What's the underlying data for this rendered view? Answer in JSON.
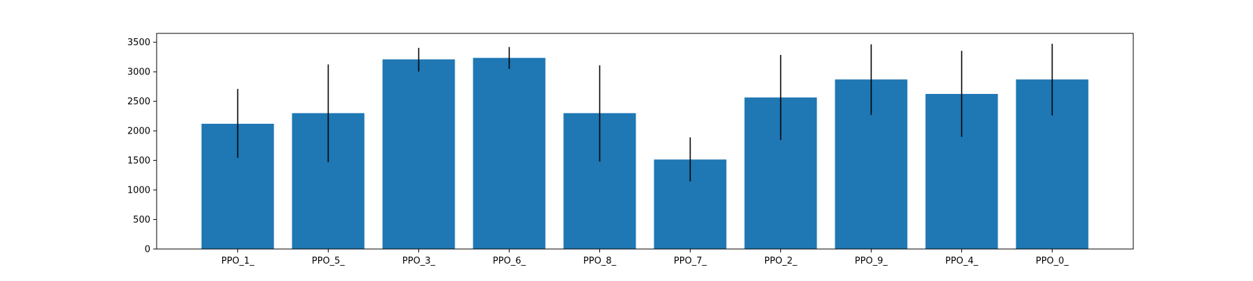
{
  "chart_data": {
    "type": "bar",
    "title": "",
    "xlabel": "",
    "ylabel": "",
    "categories": [
      "PPO_1_",
      "PPO_5_",
      "PPO_3_",
      "PPO_6_",
      "PPO_8_",
      "PPO_7_",
      "PPO_2_",
      "PPO_9_",
      "PPO_4_",
      "PPO_0_"
    ],
    "values": [
      2120,
      2300,
      3210,
      3235,
      2300,
      1515,
      2565,
      2870,
      2625,
      2870
    ],
    "error_low": [
      1545,
      1470,
      3005,
      3050,
      1480,
      1145,
      1845,
      2270,
      1900,
      2260
    ],
    "error_high": [
      2710,
      3125,
      3405,
      3420,
      3110,
      1890,
      3285,
      3465,
      3355,
      3475
    ],
    "yticks": [
      0,
      500,
      1000,
      1500,
      2000,
      2500,
      3000,
      3500
    ],
    "ylim": [
      0,
      3650
    ],
    "grid": false,
    "bar_color": "#1f77b4",
    "error_color": "#000000"
  }
}
